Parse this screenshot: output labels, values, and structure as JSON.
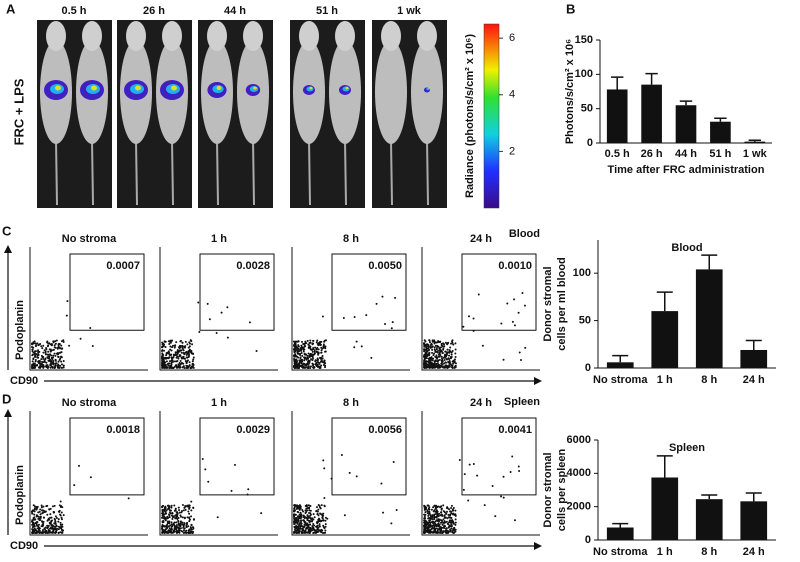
{
  "panel_a": {
    "label": "A",
    "condition": "FRC + LPS",
    "timepoints": [
      "0.5 h",
      "26 h",
      "44 h",
      "51 h",
      "1 wk"
    ],
    "colorbar": {
      "label": "Radiance (photons/s/cm² x 10⁶)",
      "lim": [
        0,
        6.5
      ],
      "ticks": [
        2,
        4,
        6
      ]
    }
  },
  "panel_c": {
    "label": "C",
    "tissue": "Blood",
    "y_axis": "Podoplanin",
    "x_axis": "CD90",
    "plots": [
      {
        "title": "No stroma",
        "gate": "0.0007"
      },
      {
        "title": "1 h",
        "gate": "0.0028"
      },
      {
        "title": "8 h",
        "gate": "0.0050"
      },
      {
        "title": "24 h",
        "gate": "0.0010"
      }
    ]
  },
  "panel_d": {
    "label": "D",
    "tissue": "Spleen",
    "y_axis": "Podoplanin",
    "x_axis": "CD90",
    "plots": [
      {
        "title": "No stroma",
        "gate": "0.0018"
      },
      {
        "title": "1 h",
        "gate": "0.0029"
      },
      {
        "title": "8 h",
        "gate": "0.0056"
      },
      {
        "title": "24 h",
        "gate": "0.0041"
      }
    ]
  },
  "chart_data": [
    {
      "type": "bar",
      "panel_label": "B",
      "ylabel": [
        "Photons/s/cm² x 10⁶"
      ],
      "xlabel": "Time after FRC administration",
      "categories": [
        "0.5 h",
        "26 h",
        "44 h",
        "51 h",
        "1 wk"
      ],
      "values": [
        78,
        85,
        55,
        31,
        2
      ],
      "errors": [
        18,
        16,
        6,
        5,
        2
      ],
      "color": "#111111",
      "ylim": [
        0,
        150
      ],
      "yticks": [
        0,
        50,
        100,
        150
      ]
    },
    {
      "type": "bar",
      "title": "Blood",
      "ylabel": [
        "Donor stromal",
        "cells per ml blood"
      ],
      "categories": [
        "No stroma",
        "1 h",
        "8 h",
        "24 h"
      ],
      "values": [
        6,
        60,
        104,
        19
      ],
      "errors": [
        7,
        20,
        15,
        10
      ],
      "color": "#111111",
      "ylim": [
        0,
        135
      ],
      "yticks": [
        0,
        50,
        100
      ]
    },
    {
      "type": "bar",
      "title": "Spleen",
      "ylabel": [
        "Donor stromal",
        "cells per spleen"
      ],
      "categories": [
        "No stroma",
        "1 h",
        "8 h",
        "24 h"
      ],
      "values": [
        750,
        3750,
        2450,
        2320
      ],
      "errors": [
        230,
        1300,
        250,
        500
      ],
      "color": "#111111",
      "ylim": [
        0,
        6000
      ],
      "yticks": [
        0,
        2000,
        4000,
        6000
      ]
    }
  ]
}
